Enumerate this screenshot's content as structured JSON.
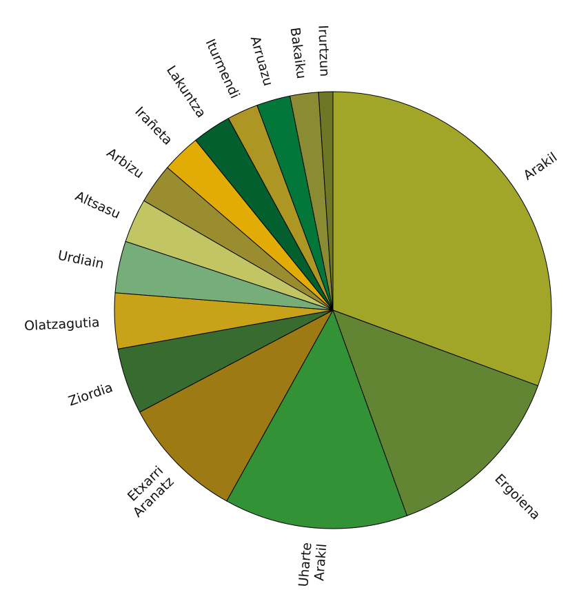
{
  "chart_data": {
    "type": "pie",
    "start_angle_deg": 0,
    "direction": "clockwise",
    "slices": [
      {
        "label": "Arakil",
        "value": 32.0,
        "color": "#A2A628"
      },
      {
        "label": "Ergoiena",
        "value": 14.5,
        "color": "#628533"
      },
      {
        "label": "Uharte\nArakil",
        "value": 14.2,
        "color": "#339236"
      },
      {
        "label": "Etxarri\nAranatz",
        "value": 9.6,
        "color": "#9E7A14"
      },
      {
        "label": "Ziordia",
        "value": 5.1,
        "color": "#386B2F"
      },
      {
        "label": "Olatzagutia",
        "value": 4.3,
        "color": "#C8A218"
      },
      {
        "label": "Urdiain",
        "value": 4.0,
        "color": "#76AD78"
      },
      {
        "label": "Altsasu",
        "value": 3.4,
        "color": "#C1C563"
      },
      {
        "label": "Arbizu",
        "value": 3.1,
        "color": "#9A8D30"
      },
      {
        "label": "Irañeta",
        "value": 3.0,
        "color": "#E2AC06"
      },
      {
        "label": "Lakuntza",
        "value": 3.0,
        "color": "#035F2D"
      },
      {
        "label": "Iturmendi",
        "value": 2.4,
        "color": "#AD9624"
      },
      {
        "label": "Arruazu",
        "value": 2.6,
        "color": "#03763A"
      },
      {
        "label": "Bakaiku",
        "value": 2.2,
        "color": "#8A8B32"
      },
      {
        "label": "Irurtzun",
        "value": 1.1,
        "color": "#6E7726"
      }
    ]
  }
}
